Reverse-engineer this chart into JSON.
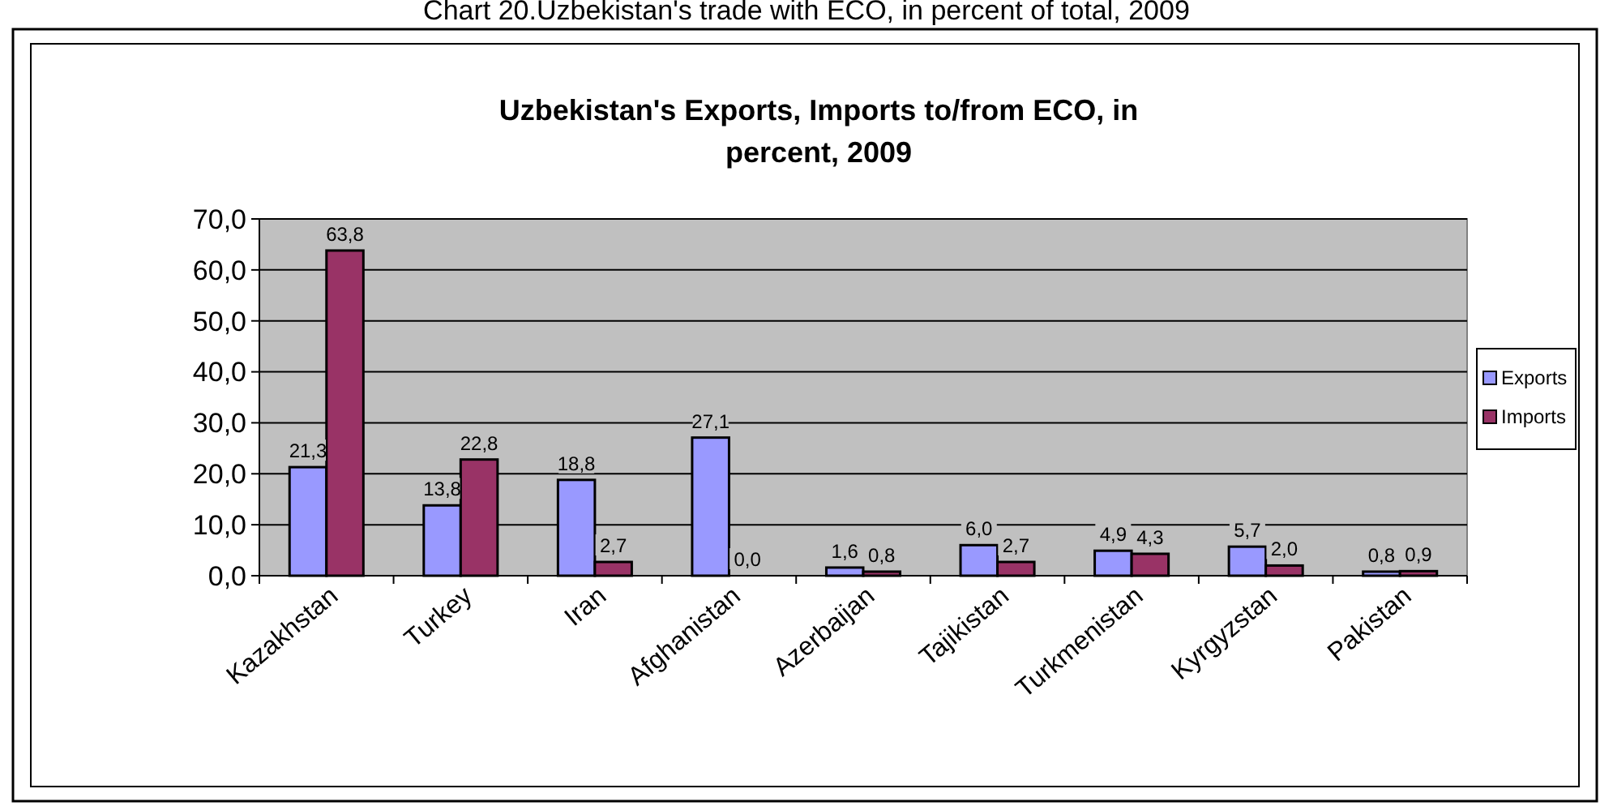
{
  "chart_data": {
    "type": "bar",
    "title": "Uzbekistan's Exports, Imports to/from ECO, in percent, 2009",
    "annotations": [
      "Chart 20.Uzbekistan's trade with ECO, in percent of total, 2009"
    ],
    "categories": [
      "Kazakhstan",
      "Turkey",
      "Iran",
      "Afghanistan",
      "Azerbaijan",
      "Tajikistan",
      "Turkmenistan",
      "Kyrgyzstan",
      "Pakistan"
    ],
    "series": [
      {
        "name": "Exports",
        "color": "#9999ff",
        "values": [
          21.3,
          13.8,
          18.8,
          27.1,
          1.6,
          6.0,
          4.9,
          5.7,
          0.8
        ],
        "value_labels": [
          "21,3",
          "13,8",
          "18,8",
          "27,1",
          "1,6",
          "6,0",
          "4,9",
          "5,7",
          "0,8"
        ]
      },
      {
        "name": "Imports",
        "color": "#993366",
        "values": [
          63.8,
          22.8,
          2.7,
          0.0,
          0.8,
          2.7,
          4.3,
          2.0,
          0.9
        ],
        "value_labels": [
          "63,8",
          "22,8",
          "2,7",
          "0,0",
          "0,8",
          "2,7",
          "4,3",
          "2,0",
          "0,9"
        ]
      }
    ],
    "ylim": [
      0,
      70
    ],
    "yticks": [
      {
        "value": 0,
        "label": "0,0"
      },
      {
        "value": 10,
        "label": "10,0"
      },
      {
        "value": 20,
        "label": "20,0"
      },
      {
        "value": 30,
        "label": "30,0"
      },
      {
        "value": 40,
        "label": "40,0"
      },
      {
        "value": 50,
        "label": "50,0"
      },
      {
        "value": 60,
        "label": "60,0"
      },
      {
        "value": 70,
        "label": "70,0"
      }
    ],
    "grid": "y",
    "legend": "right"
  }
}
